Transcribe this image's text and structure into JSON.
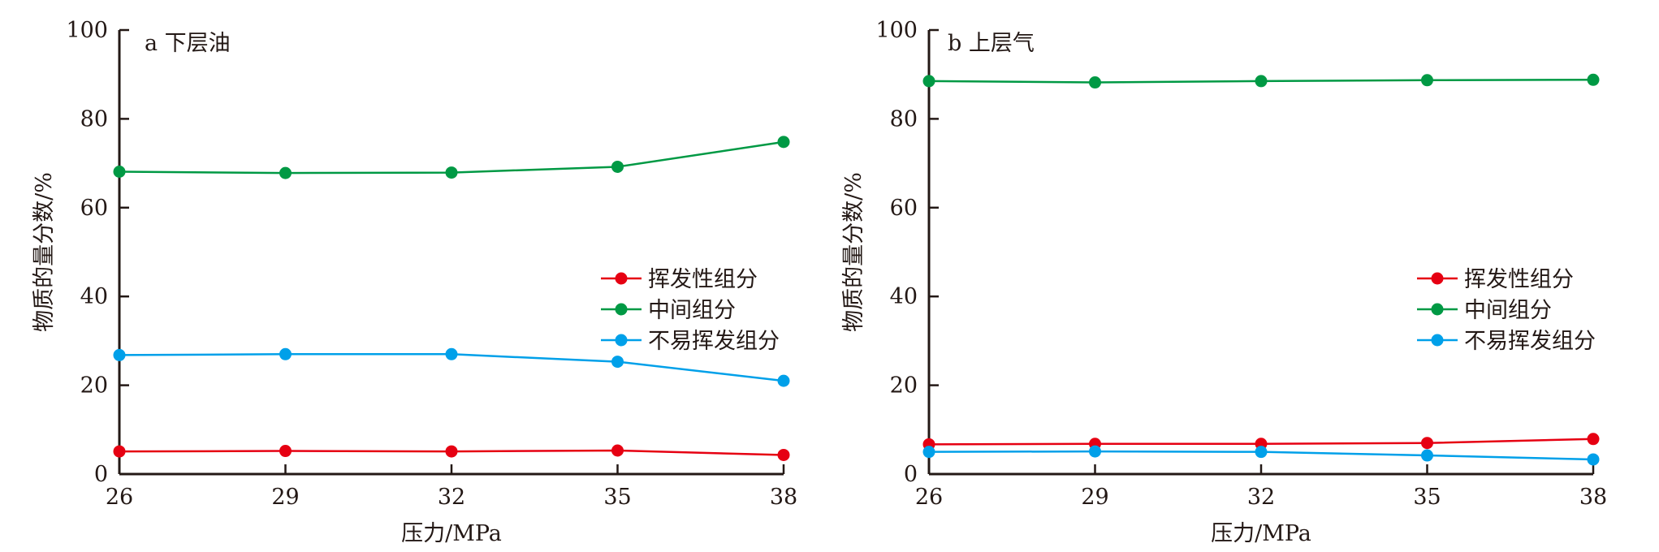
{
  "chart_data": [
    {
      "type": "line",
      "panel_label": "a 下层油",
      "xlabel": "压力/MPa",
      "ylabel": "物质的量分数/%",
      "x": [
        26,
        29,
        32,
        35,
        38
      ],
      "xticks": [
        "26",
        "29",
        "32",
        "35",
        "38"
      ],
      "xlim": [
        26,
        38
      ],
      "ylim": [
        0,
        100
      ],
      "yticks": [
        "0",
        "20",
        "40",
        "60",
        "80",
        "100"
      ],
      "grid": false,
      "legend_position": "center-right",
      "series": [
        {
          "name": "挥发性组分",
          "color": "#e60012",
          "values": [
            5.1,
            5.2,
            5.1,
            5.3,
            4.3
          ]
        },
        {
          "name": "中间组分",
          "color": "#009944",
          "values": [
            68.1,
            67.8,
            67.9,
            69.2,
            74.8
          ]
        },
        {
          "name": "不易挥发组分",
          "color": "#00a0e9",
          "values": [
            26.8,
            27.0,
            27.0,
            25.3,
            21.0
          ]
        }
      ]
    },
    {
      "type": "line",
      "panel_label": "b 上层气",
      "xlabel": "压力/MPa",
      "ylabel": "物质的量分数/%",
      "x": [
        26,
        29,
        32,
        35,
        38
      ],
      "xticks": [
        "26",
        "29",
        "32",
        "35",
        "38"
      ],
      "xlim": [
        26,
        38
      ],
      "ylim": [
        0,
        100
      ],
      "yticks": [
        "0",
        "20",
        "40",
        "60",
        "80",
        "100"
      ],
      "grid": false,
      "legend_position": "center-right",
      "series": [
        {
          "name": "挥发性组分",
          "color": "#e60012",
          "values": [
            6.7,
            6.8,
            6.8,
            7.0,
            7.9
          ]
        },
        {
          "name": "中间组分",
          "color": "#009944",
          "values": [
            88.5,
            88.2,
            88.5,
            88.7,
            88.8
          ]
        },
        {
          "name": "不易挥发组分",
          "color": "#00a0e9",
          "values": [
            5.0,
            5.1,
            5.0,
            4.2,
            3.3
          ]
        }
      ]
    }
  ]
}
